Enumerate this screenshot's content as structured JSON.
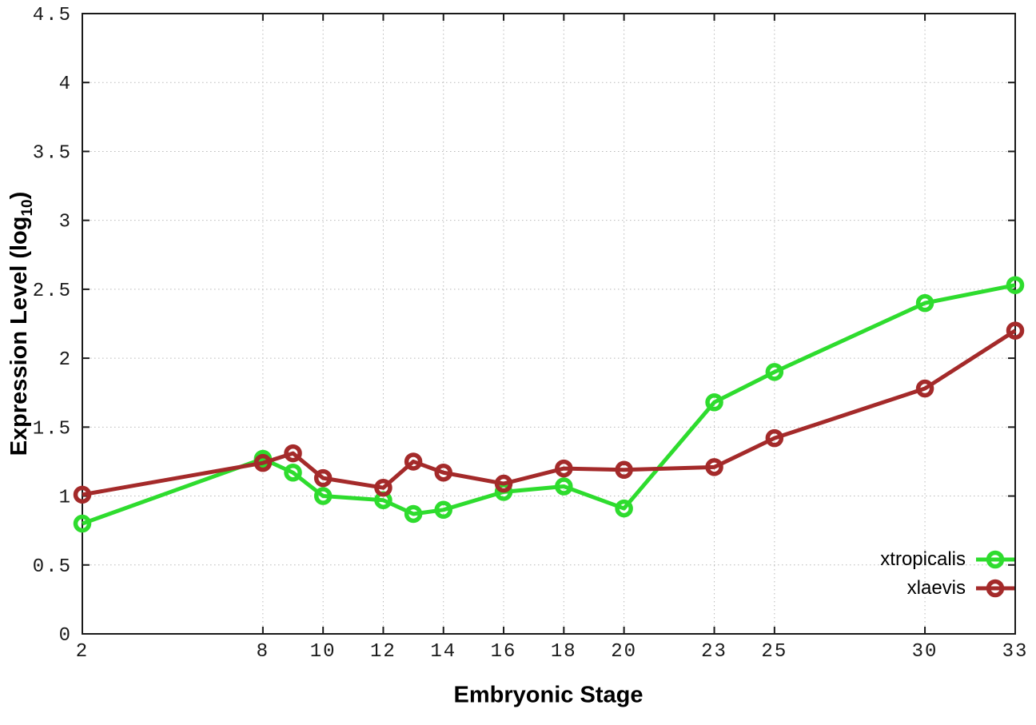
{
  "chart_data": {
    "type": "line",
    "title": "",
    "xlabel": "Embryonic Stage",
    "ylabel": "Expression Level (log10)",
    "ylabel_parts": {
      "pre": "Expression Level (log",
      "sub": "10",
      "post": ")"
    },
    "xlim": [
      2,
      33
    ],
    "ylim": [
      0,
      4.5
    ],
    "grid": true,
    "legend_position": "bottom-right",
    "x": [
      2,
      8,
      9,
      10,
      12,
      13,
      14,
      16,
      18,
      20,
      23,
      25,
      30,
      33
    ],
    "x_ticks": [
      2,
      8,
      10,
      12,
      14,
      16,
      18,
      20,
      23,
      25,
      30,
      33
    ],
    "x_tick_labels": [
      "2",
      "8",
      "10",
      "12",
      "14",
      "16",
      "18",
      "20",
      "23",
      "25",
      "30",
      "33"
    ],
    "y_ticks": [
      0,
      0.5,
      1,
      1.5,
      2,
      2.5,
      3,
      3.5,
      4,
      4.5
    ],
    "y_tick_labels": [
      "0",
      "0.5",
      "1",
      "1.5",
      "2",
      "2.5",
      "3",
      "3.5",
      "4",
      "4.5"
    ],
    "series": [
      {
        "name": "xtropicalis",
        "color": "#2edc2e",
        "values": [
          0.8,
          1.27,
          1.17,
          1.0,
          0.97,
          0.87,
          0.9,
          1.03,
          1.07,
          0.91,
          1.68,
          1.9,
          2.4,
          2.53
        ]
      },
      {
        "name": "xlaevis",
        "color": "#a42a2a",
        "values": [
          1.01,
          1.24,
          1.31,
          1.13,
          1.06,
          1.25,
          1.17,
          1.09,
          1.2,
          1.19,
          1.21,
          1.42,
          1.78,
          2.2
        ]
      }
    ]
  }
}
